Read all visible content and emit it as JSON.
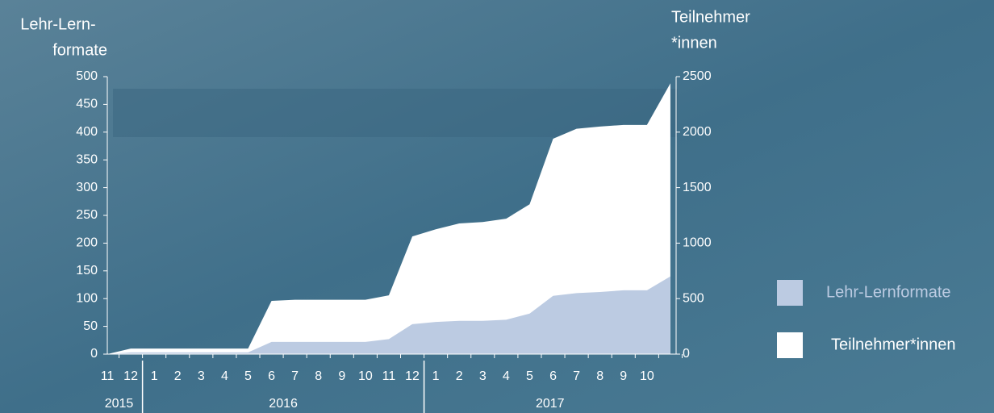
{
  "chart_data": {
    "type": "area",
    "ylabel": [
      "Lehr-Lern-",
      "formate"
    ],
    "y2label": [
      "Teilnehmer",
      "*innen"
    ],
    "categories": [
      "11",
      "12",
      "1",
      "2",
      "3",
      "4",
      "5",
      "6",
      "7",
      "8",
      "9",
      "10",
      "11",
      "12",
      "1",
      "2",
      "3",
      "4",
      "5",
      "6",
      "7",
      "8",
      "9",
      "10",
      null
    ],
    "year_groups": [
      {
        "label": "2015",
        "count": 2
      },
      {
        "label": "2016",
        "count": 12
      },
      {
        "label": "2017",
        "count": 11
      }
    ],
    "series": [
      {
        "name": "Teilnehmer*innen",
        "color": "#ffffff",
        "axis": "y2",
        "values": [
          0,
          50,
          50,
          50,
          50,
          50,
          50,
          480,
          490,
          490,
          490,
          490,
          530,
          1060,
          1125,
          1177,
          1190,
          1220,
          1350,
          1940,
          2030,
          2050,
          2065,
          2065,
          2440
        ]
      },
      {
        "name": "Lehr-Lernformate",
        "color": "#bccbe2",
        "values": [
          0,
          3,
          3,
          3,
          3,
          3,
          3,
          22,
          22,
          22,
          22,
          22,
          27,
          54,
          58,
          60,
          60,
          62,
          73,
          105,
          110,
          112,
          115,
          115,
          140
        ]
      }
    ],
    "ylim": [
      0,
      500
    ],
    "yticks": [
      0,
      50,
      100,
      150,
      200,
      250,
      300,
      350,
      400,
      450,
      500
    ],
    "y2lim": [
      0,
      2500
    ],
    "y2ticks": [
      0,
      500,
      1000,
      1500,
      2000,
      2500
    ]
  }
}
